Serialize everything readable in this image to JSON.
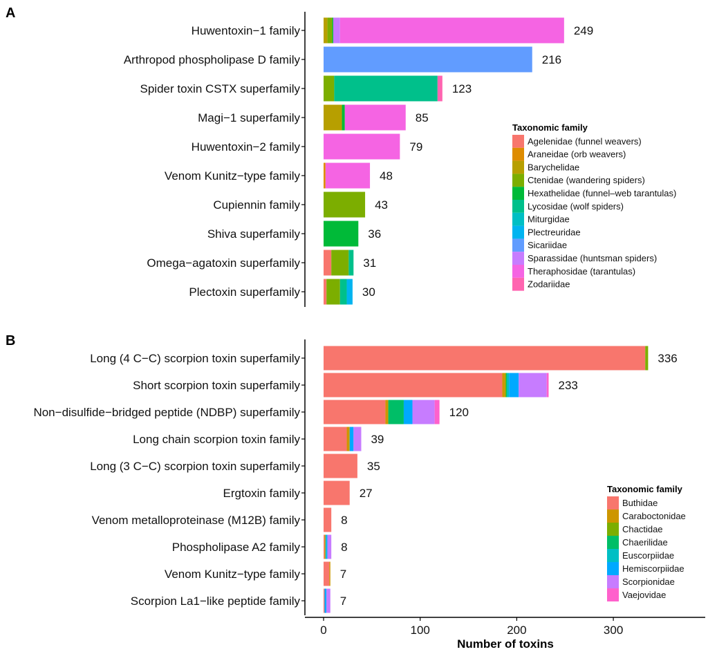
{
  "chart_data": [
    {
      "type": "bar",
      "orientation": "horizontal",
      "stacked": true,
      "panel_label": "A",
      "xlabel": "",
      "ylabel": "",
      "xlim": [
        -20,
        380
      ],
      "legend": {
        "title": "Taxonomic family",
        "placement": "right",
        "entries": [
          {
            "name": "Agelenidae (funnel weavers)",
            "color": "#F8766D"
          },
          {
            "name": "Araneidae (orb weavers)",
            "color": "#DE8C00"
          },
          {
            "name": "Barychelidae",
            "color": "#B79F00"
          },
          {
            "name": "Ctenidae (wandering spiders)",
            "color": "#7CAE00"
          },
          {
            "name": "Hexathelidae (funnel–web tarantulas)",
            "color": "#00BA38"
          },
          {
            "name": "Lycosidae (wolf spiders)",
            "color": "#00C08B"
          },
          {
            "name": "Miturgidae",
            "color": "#00BFC4"
          },
          {
            "name": "Plectreuridae",
            "color": "#00B4F0"
          },
          {
            "name": "Sicariidae",
            "color": "#619CFF"
          },
          {
            "name": "Sparassidae (huntsman spiders)",
            "color": "#C77CFF"
          },
          {
            "name": "Theraphosidae (tarantulas)",
            "color": "#F564E3"
          },
          {
            "name": "Zodariidae",
            "color": "#FF64B0"
          }
        ]
      },
      "categories": [
        "Huwentoxin−1 family",
        "Arthropod phospholipase D family",
        "Spider toxin CSTX superfamily",
        "Magi−1 superfamily",
        "Huwentoxin−2 family",
        "Venom Kunitz−type family",
        "Cupiennin family",
        "Shiva superfamily",
        "Omega−agatoxin superfamily",
        "Plectoxin superfamily"
      ],
      "totals": [
        249,
        216,
        123,
        85,
        79,
        48,
        43,
        36,
        31,
        30
      ],
      "stacks": [
        [
          {
            "family": "Barychelidae",
            "value": 4
          },
          {
            "family": "Ctenidae (wandering spiders)",
            "value": 5
          },
          {
            "family": "Hexathelidae (funnel–web tarantulas)",
            "value": 1
          },
          {
            "family": "Sparassidae (huntsman spiders)",
            "value": 7
          },
          {
            "family": "Theraphosidae (tarantulas)",
            "value": 232
          }
        ],
        [
          {
            "family": "Sicariidae",
            "value": 216
          }
        ],
        [
          {
            "family": "Ctenidae (wandering spiders)",
            "value": 11
          },
          {
            "family": "Lycosidae (wolf spiders)",
            "value": 107
          },
          {
            "family": "Zodariidae",
            "value": 5
          }
        ],
        [
          {
            "family": "Barychelidae",
            "value": 19
          },
          {
            "family": "Hexathelidae (funnel–web tarantulas)",
            "value": 3
          },
          {
            "family": "Theraphosidae (tarantulas)",
            "value": 63
          }
        ],
        [
          {
            "family": "Theraphosidae (tarantulas)",
            "value": 79
          }
        ],
        [
          {
            "family": "Araneidae (orb weavers)",
            "value": 2
          },
          {
            "family": "Theraphosidae (tarantulas)",
            "value": 46
          }
        ],
        [
          {
            "family": "Ctenidae (wandering spiders)",
            "value": 43
          }
        ],
        [
          {
            "family": "Hexathelidae (funnel–web tarantulas)",
            "value": 36
          }
        ],
        [
          {
            "family": "Agelenidae (funnel weavers)",
            "value": 8
          },
          {
            "family": "Ctenidae (wandering spiders)",
            "value": 18
          },
          {
            "family": "Lycosidae (wolf spiders)",
            "value": 5
          }
        ],
        [
          {
            "family": "Agelenidae (funnel weavers)",
            "value": 3
          },
          {
            "family": "Ctenidae (wandering spiders)",
            "value": 14
          },
          {
            "family": "Lycosidae (wolf spiders)",
            "value": 7
          },
          {
            "family": "Plectreuridae",
            "value": 6
          }
        ]
      ]
    },
    {
      "type": "bar",
      "orientation": "horizontal",
      "stacked": true,
      "panel_label": "B",
      "xlabel": "Number of toxins",
      "ylabel": "",
      "xlim": [
        -20,
        380
      ],
      "xticks": [
        0,
        100,
        200,
        300
      ],
      "legend": {
        "title": "Taxonomic family",
        "placement": "bottom-right",
        "entries": [
          {
            "name": "Buthidae",
            "color": "#F8766D"
          },
          {
            "name": "Caraboctonidae",
            "color": "#CD9600"
          },
          {
            "name": "Chactidae",
            "color": "#7CAE00"
          },
          {
            "name": "Chaerilidae",
            "color": "#00BE67"
          },
          {
            "name": "Euscorpiidae",
            "color": "#00BFC4"
          },
          {
            "name": "Hemiscorpiidae",
            "color": "#00A9FF"
          },
          {
            "name": "Scorpionidae",
            "color": "#C77CFF"
          },
          {
            "name": "Vaejovidae",
            "color": "#FF61CC"
          }
        ]
      },
      "categories": [
        "Long (4 C−C) scorpion toxin superfamily",
        "Short scorpion toxin superfamily",
        "Non−disulfide−bridged peptide (NDBP) superfamily",
        "Long chain scorpion toxin family",
        "Long (3 C−C) scorpion toxin superfamily",
        "Ergtoxin family",
        "Venom metalloproteinase (M12B) family",
        "Phospholipase A2 family",
        "Venom Kunitz−type family",
        "Scorpion La1−like peptide family"
      ],
      "totals": [
        336,
        233,
        120,
        39,
        35,
        27,
        8,
        8,
        7,
        7
      ],
      "stacks": [
        [
          {
            "family": "Buthidae",
            "value": 333
          },
          {
            "family": "Chactidae",
            "value": 3
          }
        ],
        [
          {
            "family": "Buthidae",
            "value": 185
          },
          {
            "family": "Caraboctonidae",
            "value": 3
          },
          {
            "family": "Chactidae",
            "value": 1
          },
          {
            "family": "Chaerilidae",
            "value": 1
          },
          {
            "family": "Euscorpiidae",
            "value": 2
          },
          {
            "family": "Hemiscorpiidae",
            "value": 10
          },
          {
            "family": "Scorpionidae",
            "value": 29
          },
          {
            "family": "Vaejovidae",
            "value": 2
          }
        ],
        [
          {
            "family": "Buthidae",
            "value": 64
          },
          {
            "family": "Caraboctonidae",
            "value": 3
          },
          {
            "family": "Chaerilidae",
            "value": 16
          },
          {
            "family": "Hemiscorpiidae",
            "value": 9
          },
          {
            "family": "Scorpionidae",
            "value": 23
          },
          {
            "family": "Vaejovidae",
            "value": 5
          }
        ],
        [
          {
            "family": "Buthidae",
            "value": 24
          },
          {
            "family": "Caraboctonidae",
            "value": 3
          },
          {
            "family": "Hemiscorpiidae",
            "value": 4
          },
          {
            "family": "Scorpionidae",
            "value": 8
          }
        ],
        [
          {
            "family": "Buthidae",
            "value": 35
          }
        ],
        [
          {
            "family": "Buthidae",
            "value": 27
          }
        ],
        [
          {
            "family": "Buthidae",
            "value": 8
          }
        ],
        [
          {
            "family": "Buthidae",
            "value": 1
          },
          {
            "family": "Caraboctonidae",
            "value": 1
          },
          {
            "family": "Euscorpiidae",
            "value": 1
          },
          {
            "family": "Hemiscorpiidae",
            "value": 1
          },
          {
            "family": "Scorpionidae",
            "value": 4
          }
        ],
        [
          {
            "family": "Buthidae",
            "value": 6
          },
          {
            "family": "Caraboctonidae",
            "value": 1
          }
        ],
        [
          {
            "family": "Buthidae",
            "value": 1
          },
          {
            "family": "Hemiscorpiidae",
            "value": 2
          },
          {
            "family": "Scorpionidae",
            "value": 4
          }
        ]
      ]
    }
  ]
}
